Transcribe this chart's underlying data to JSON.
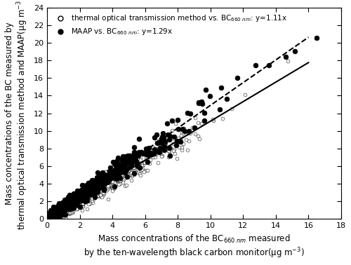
{
  "xlim": [
    0,
    18
  ],
  "ylim": [
    0,
    24
  ],
  "xticks": [
    0,
    2,
    4,
    6,
    8,
    10,
    12,
    14,
    16,
    18
  ],
  "yticks": [
    0,
    2,
    4,
    6,
    8,
    10,
    12,
    14,
    16,
    18,
    20,
    22,
    24
  ],
  "slope_open": 1.11,
  "slope_filled": 1.29,
  "open_marker_size": 3.5,
  "filled_marker_size": 5.0,
  "line_solid_slope": 1.11,
  "line_dashed_slope": 1.29,
  "line_solid_style": "-",
  "line_dashed_style": "--",
  "seed": 12345,
  "n_open": 1800,
  "n_filled": 600,
  "figsize": [
    5.0,
    3.78
  ],
  "dpi": 100,
  "background_color": "white",
  "xlabel_line1": "Mass concentrations of the BC$_{660\\ nm}$ measured",
  "xlabel_line2": "by the ten-wavelength black carbon monitor(μg m$^{-3}$)",
  "ylabel": "Mass concentrations of the BC measured by\nthermal optical transmission method and MAAP(μg m$^{-3}$)",
  "legend_open": "thermal optical transmission method vs. BC$_{660\\ nm}$: y=1.11x",
  "legend_filled": "MAAP vs. BC$_{660\\ nm}$: y=1.29x"
}
